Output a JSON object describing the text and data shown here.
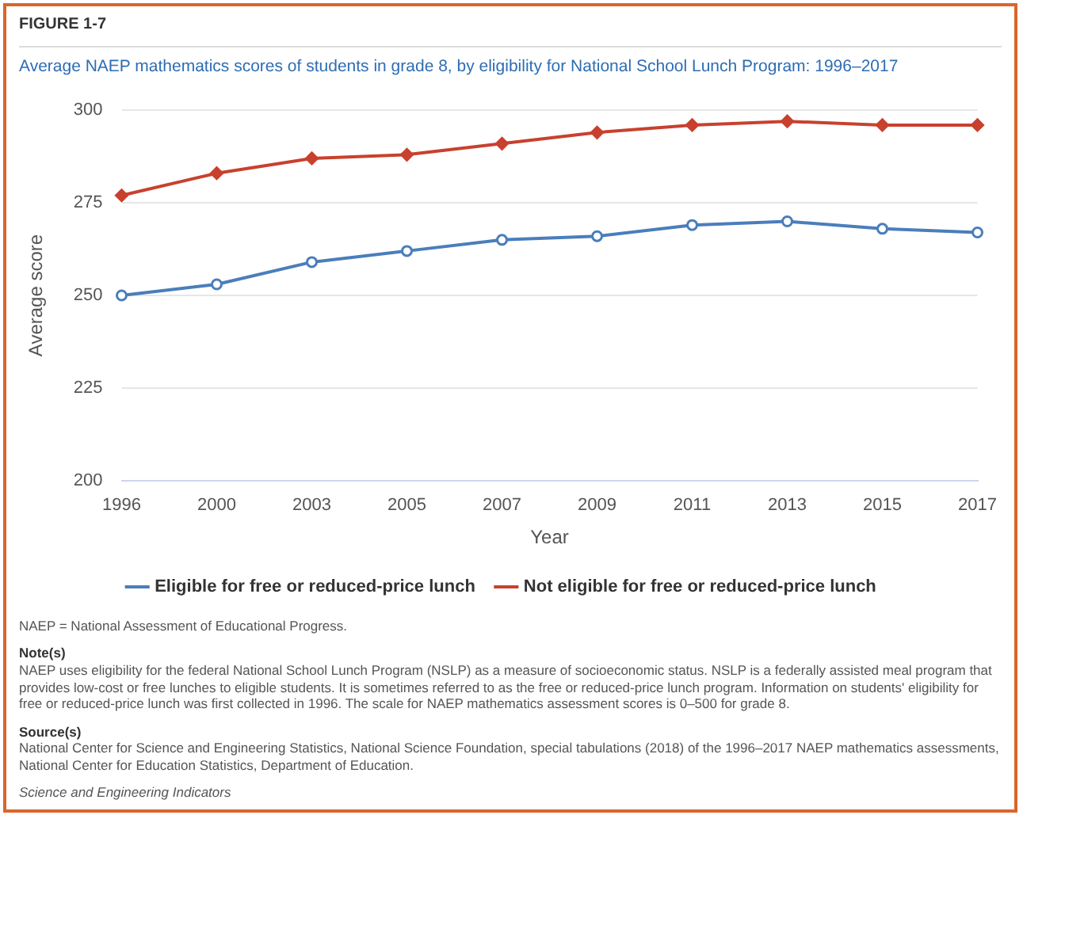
{
  "chart_data": {
    "type": "line",
    "subtitle": "FIGURE 1-7",
    "title": "Average NAEP mathematics scores of students in grade 8, by eligibility for National School Lunch Program: 1996–2017",
    "xlabel": "Year",
    "ylabel": "Average score",
    "categories": [
      "1996",
      "2000",
      "2003",
      "2005",
      "2007",
      "2009",
      "2011",
      "2013",
      "2015",
      "2017"
    ],
    "series": [
      {
        "name": "Eligible for free or reduced-price lunch",
        "color": "#4a7ebb",
        "marker": "circle",
        "values": [
          250,
          253,
          259,
          262,
          265,
          266,
          269,
          270,
          268,
          267
        ]
      },
      {
        "name": "Not eligible for free or reduced-price lunch",
        "color": "#c8412e",
        "marker": "diamond",
        "values": [
          277,
          283,
          287,
          288,
          291,
          294,
          296,
          297,
          296,
          296
        ]
      }
    ],
    "ylim": [
      200,
      300
    ],
    "yticks": [
      200,
      225,
      250,
      275,
      300
    ],
    "grid": "y",
    "legend": "bottom",
    "line_style": "solid",
    "annotations": [
      "NAEP = National Assessment of Educational Progress.",
      "Note(s)",
      "NAEP uses eligibility for the federal National School Lunch Program (NSLP) as a measure of socioeconomic status. NSLP is a federally assisted meal program that provides low-cost or free lunches to eligible students. It is sometimes referred to as the free or reduced-price lunch program. Information on students' eligibility for free or reduced-price lunch was first collected in 1996. The scale for NAEP mathematics assessment scores is 0–500 for grade 8.",
      "Source(s)",
      "National Center for Science and Engineering Statistics, National Science Foundation, special tabulations (2018) of the 1996–2017 NAEP mathematics assessments, National Center for Education Statistics, Department of Education.",
      "Science and Engineering Indicators"
    ]
  }
}
